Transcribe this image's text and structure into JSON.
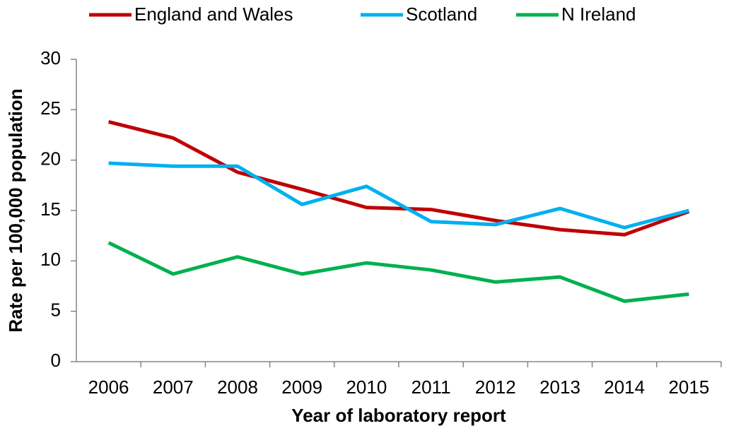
{
  "chart_data": {
    "type": "line",
    "x_label": "Year of laboratory report",
    "y_label": "Rate per 100,000 population",
    "categories": [
      "2006",
      "2007",
      "2008",
      "2009",
      "2010",
      "2011",
      "2012",
      "2013",
      "2014",
      "2015"
    ],
    "series": [
      {
        "name": "England and Wales",
        "color": "#c00000",
        "values": [
          23.8,
          22.2,
          18.8,
          17.1,
          15.3,
          15.1,
          14.0,
          13.1,
          12.6,
          14.9
        ]
      },
      {
        "name": "Scotland",
        "color": "#00b0f0",
        "values": [
          19.7,
          19.4,
          19.4,
          15.6,
          17.4,
          13.9,
          13.6,
          15.2,
          13.3,
          15.0
        ]
      },
      {
        "name": "N Ireland",
        "color": "#00b050",
        "values": [
          11.8,
          8.7,
          10.4,
          8.7,
          9.8,
          9.1,
          7.9,
          8.4,
          6.0,
          6.7
        ]
      }
    ],
    "ylim": [
      0,
      30
    ],
    "yticks": [
      0,
      5,
      10,
      15,
      20,
      25,
      30
    ],
    "grid": false,
    "legend": "top"
  }
}
